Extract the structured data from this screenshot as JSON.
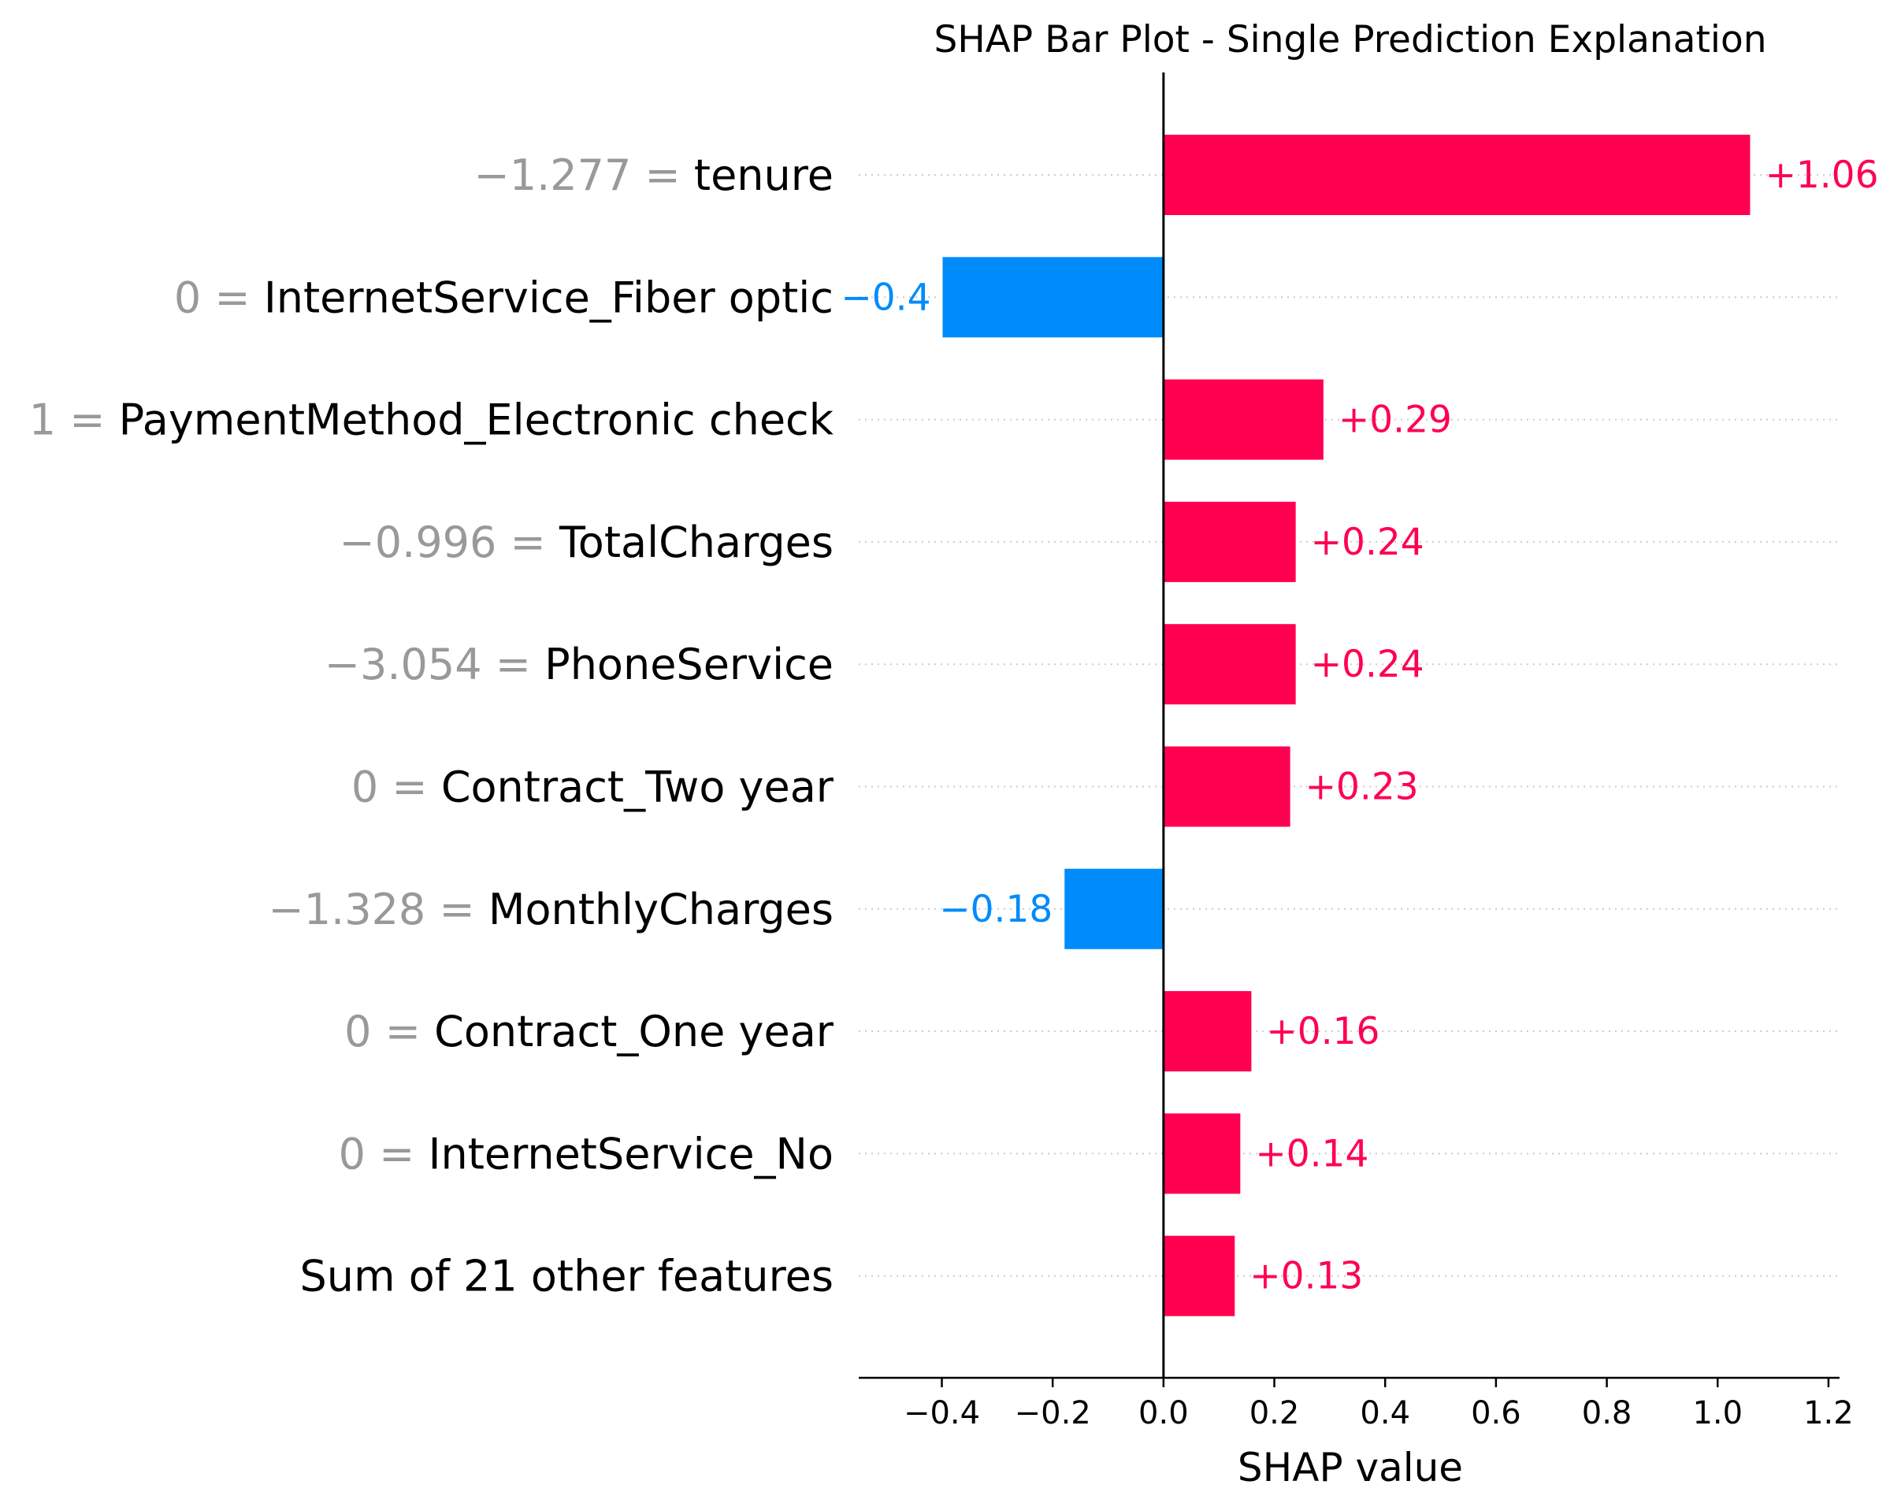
{
  "chart_data": {
    "type": "bar",
    "title": "SHAP Bar Plot - Single Prediction Explanation",
    "xlabel": "SHAP value",
    "xlim": [
      -0.55,
      1.22
    ],
    "xticks": [
      -0.4,
      -0.2,
      0.0,
      0.2,
      0.4,
      0.6,
      0.8,
      1.0,
      1.2
    ],
    "xtick_labels": [
      "−0.4",
      "−0.2",
      "0.0",
      "0.2",
      "0.4",
      "0.6",
      "0.8",
      "1.0",
      "1.2"
    ],
    "colors": {
      "positive": "#ff0051",
      "negative": "#008bfb",
      "feature_value": "#999999",
      "text": "#000000",
      "gridline": "#cccccc"
    },
    "features": [
      {
        "value_text": "−1.277 = ",
        "name": "tenure",
        "shap": 1.06,
        "label": "+1.06"
      },
      {
        "value_text": "0 = ",
        "name": "InternetService_Fiber optic",
        "shap": -0.4,
        "label": "−0.4"
      },
      {
        "value_text": "1 = ",
        "name": "PaymentMethod_Electronic check",
        "shap": 0.29,
        "label": "+0.29"
      },
      {
        "value_text": "−0.996 = ",
        "name": "TotalCharges",
        "shap": 0.24,
        "label": "+0.24"
      },
      {
        "value_text": "−3.054 = ",
        "name": "PhoneService",
        "shap": 0.24,
        "label": "+0.24"
      },
      {
        "value_text": "0 = ",
        "name": "Contract_Two year",
        "shap": 0.23,
        "label": "+0.23"
      },
      {
        "value_text": "−1.328 = ",
        "name": "MonthlyCharges",
        "shap": -0.18,
        "label": "−0.18"
      },
      {
        "value_text": "0 = ",
        "name": "Contract_One year",
        "shap": 0.16,
        "label": "+0.16"
      },
      {
        "value_text": "0 = ",
        "name": "InternetService_No",
        "shap": 0.14,
        "label": "+0.14"
      },
      {
        "value_text": "",
        "name": "Sum of 21 other features",
        "shap": 0.13,
        "label": "+0.13"
      }
    ]
  }
}
